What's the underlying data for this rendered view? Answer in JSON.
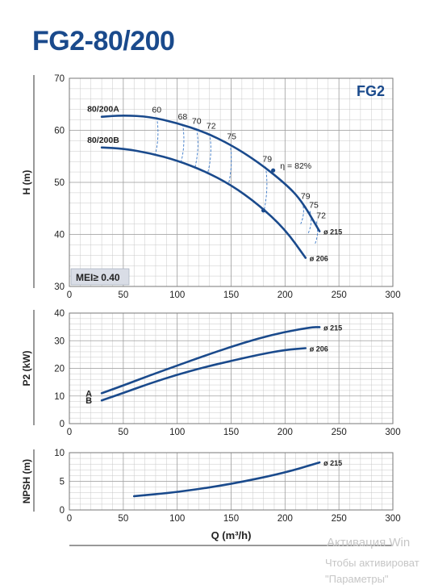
{
  "title": "FG2-80/200",
  "watermark": {
    "line1": "Активация Win",
    "line2": "Чтобы активироват",
    "line3": "\"Параметры\""
  },
  "colors": {
    "curve": "#1a4a8c",
    "title": "#1a4a8c",
    "grid": "#c8c8c8",
    "mei_box": "#d9dde6"
  },
  "chart_data": [
    {
      "type": "line",
      "id": "head",
      "ylabel": "H (m)",
      "xlim": [
        0,
        300
      ],
      "ylim": [
        30,
        70
      ],
      "xticks": [
        0,
        50,
        100,
        150,
        200,
        250,
        300
      ],
      "yticks": [
        30,
        40,
        50,
        60,
        70
      ],
      "badge": "FG2",
      "mei_label": "MEI≥ 0.40",
      "series": [
        {
          "name": "80/200A",
          "diameter_label": "ø 215",
          "x": [
            30,
            50,
            75,
            100,
            125,
            150,
            175,
            200,
            215,
            232
          ],
          "y": [
            62.6,
            62.9,
            62.6,
            61.4,
            59.7,
            57.2,
            53.9,
            49.8,
            46.6,
            40.6
          ]
        },
        {
          "name": "80/200B",
          "diameter_label": "ø 206",
          "x": [
            30,
            50,
            75,
            100,
            125,
            150,
            175,
            200,
            219
          ],
          "y": [
            56.7,
            56.5,
            55.6,
            54.2,
            52.2,
            49.5,
            45.8,
            41.0,
            35.5
          ]
        }
      ],
      "efficiency": [
        {
          "label": "60",
          "x": 81,
          "top": 62.5,
          "bottom": 55.2
        },
        {
          "label": "68",
          "x": 105,
          "top": 61.2,
          "bottom": 53.8
        },
        {
          "label": "70",
          "x": 118,
          "top": 60.3,
          "bottom": 52.9
        },
        {
          "label": "72",
          "x": 130,
          "top": 59.4,
          "bottom": 52.0
        },
        {
          "label": "75",
          "x": 149,
          "top": 57.4,
          "bottom": 49.6
        },
        {
          "label": "79",
          "x": 182,
          "top": 53.0,
          "bottom": 44.6
        },
        {
          "label": "η = 82%",
          "x": 191,
          "top": 52.0,
          "bottom": 44.6
        },
        {
          "label": "79",
          "x": 216,
          "top": 46.2,
          "bottom": 42.0
        },
        {
          "label": "75",
          "x": 223,
          "top": 44.5,
          "bottom": 40.2
        },
        {
          "label": "72",
          "x": 229,
          "top": 42.5,
          "bottom": 38.0
        }
      ]
    },
    {
      "type": "line",
      "id": "power",
      "ylabel": "P2 (kW)",
      "xlim": [
        0,
        300
      ],
      "ylim": [
        0,
        40
      ],
      "xticks": [
        0,
        50,
        100,
        150,
        200,
        250,
        300
      ],
      "yticks": [
        0,
        10,
        20,
        30,
        40
      ],
      "series": [
        {
          "name": "A",
          "diameter_label": "ø 215",
          "x": [
            30,
            50,
            75,
            100,
            125,
            150,
            175,
            200,
            225,
            232
          ],
          "y": [
            11.0,
            13.8,
            17.5,
            21.0,
            24.5,
            27.8,
            30.8,
            33.2,
            34.9,
            34.9
          ]
        },
        {
          "name": "B",
          "diameter_label": "ø 206",
          "x": [
            30,
            50,
            75,
            100,
            125,
            150,
            175,
            200,
            219
          ],
          "y": [
            8.4,
            11.1,
            14.6,
            17.7,
            20.4,
            22.7,
            24.9,
            26.7,
            27.3
          ]
        }
      ]
    },
    {
      "type": "line",
      "id": "npsh",
      "ylabel": "NPSH (m)",
      "xlabel": "Q (m³/h)",
      "xlim": [
        0,
        300
      ],
      "ylim": [
        0,
        10
      ],
      "xticks": [
        0,
        50,
        100,
        150,
        200,
        250,
        300
      ],
      "yticks": [
        0,
        5,
        10
      ],
      "series": [
        {
          "name": "",
          "diameter_label": "ø 215",
          "x": [
            60,
            100,
            150,
            200,
            232
          ],
          "y": [
            2.4,
            3.1,
            4.5,
            6.5,
            8.3
          ]
        }
      ]
    }
  ]
}
